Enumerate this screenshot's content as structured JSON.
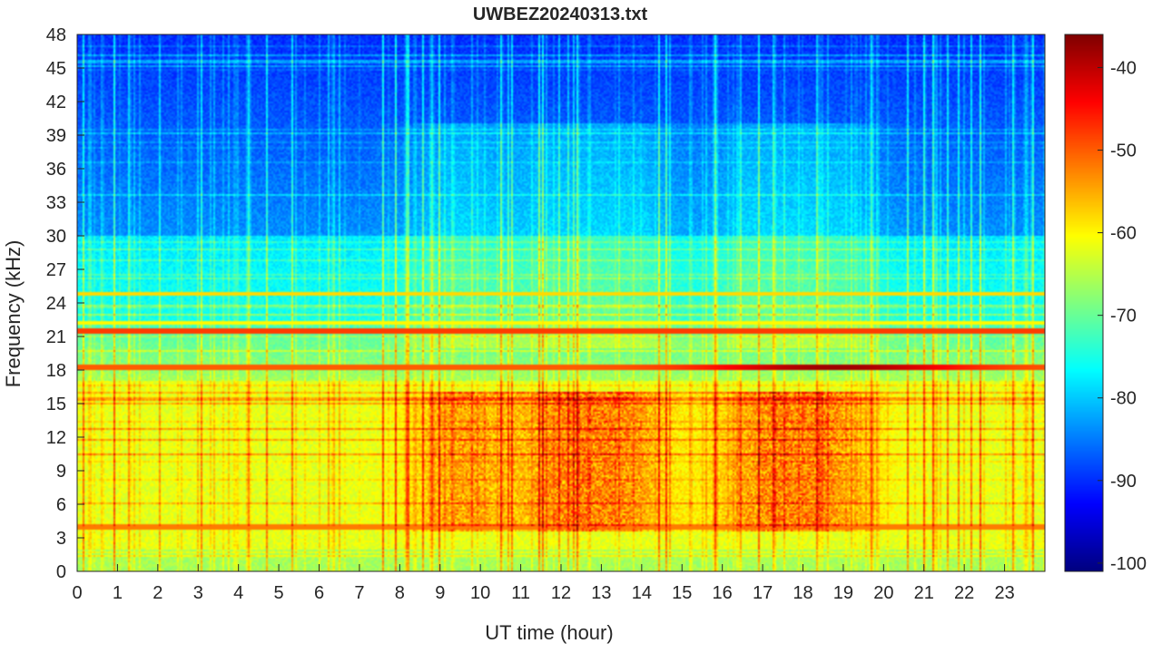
{
  "chart_data": {
    "type": "heatmap",
    "title": "UWBEZ20240313.txt",
    "xlabel": "UT time (hour)",
    "ylabel": "Frequency (kHz)",
    "xlim": [
      0,
      24
    ],
    "ylim": [
      0,
      48
    ],
    "x_ticks": [
      "0",
      "1",
      "2",
      "3",
      "4",
      "5",
      "6",
      "7",
      "8",
      "9",
      "10",
      "11",
      "12",
      "13",
      "14",
      "15",
      "16",
      "17",
      "18",
      "19",
      "20",
      "21",
      "22",
      "23"
    ],
    "y_ticks": [
      "0",
      "3",
      "6",
      "9",
      "12",
      "15",
      "18",
      "21",
      "24",
      "27",
      "30",
      "33",
      "36",
      "39",
      "42",
      "45",
      "48"
    ],
    "colorbar": {
      "colormap": "jet",
      "clim": [
        -101,
        -36
      ],
      "ticks": [
        "-100",
        "-90",
        "-80",
        "-70",
        "-60",
        "-50",
        "-40"
      ]
    },
    "features": {
      "background_level_high_freq": -90,
      "background_level_mid_freq": -78,
      "background_level_low_freq": -62,
      "strong_band_khz": 18.3,
      "strong_band_peak_level": -38,
      "strong_band_peak_hour": 18.8,
      "secondary_band_khz": 21.5,
      "lower_band_khz": 4.0,
      "line_24_8_khz": 24.8,
      "line_22_2_khz": 22.2,
      "emission_band_khz": [
        3.5,
        16
      ],
      "emission_peak_hours": [
        9.5,
        12,
        13.6,
        17,
        18.6
      ]
    }
  }
}
